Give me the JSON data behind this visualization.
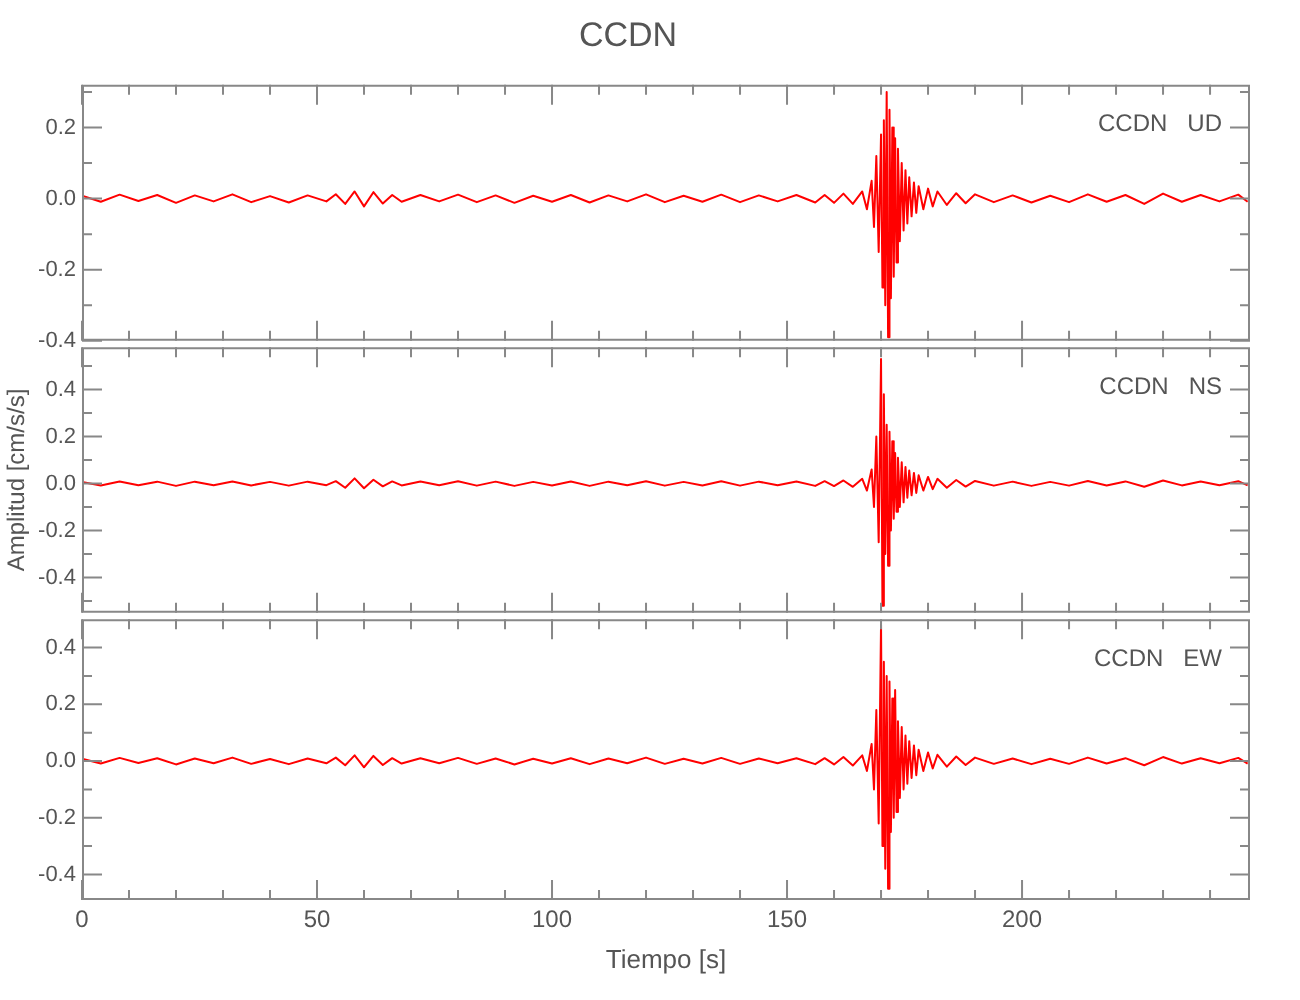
{
  "chart_data": [
    {
      "type": "line",
      "title": "CCDN",
      "annotations": [
        "CCDN   UD"
      ],
      "xlim": [
        0,
        248.5
      ],
      "xticks": [
        0,
        {
          "value": 10,
          "label": null
        },
        {
          "value": 20,
          "label": null
        },
        {
          "value": 30,
          "label": null
        },
        {
          "value": 40,
          "label": null
        },
        50,
        {
          "value": 60,
          "label": null
        },
        {
          "value": 70,
          "label": null
        },
        {
          "value": 80,
          "label": null
        },
        {
          "value": 90,
          "label": null
        },
        100,
        {
          "value": 110,
          "label": null
        },
        {
          "value": 120,
          "label": null
        },
        {
          "value": 130,
          "label": null
        },
        {
          "value": 140,
          "label": null
        },
        150,
        {
          "value": 160,
          "label": null
        },
        {
          "value": 170,
          "label": null
        },
        {
          "value": 180,
          "label": null
        },
        {
          "value": 190,
          "label": null
        },
        200,
        {
          "value": 210,
          "label": null
        },
        {
          "value": 220,
          "label": null
        },
        {
          "value": 230,
          "label": null
        },
        {
          "value": 240,
          "label": null
        }
      ],
      "ylim": [
        -0.4,
        0.32
      ],
      "yticks": [
        {
          "value": -0.4,
          "label": "-0.4"
        },
        {
          "value": -0.3,
          "label": null
        },
        {
          "value": -0.2,
          "label": "-0.2"
        },
        {
          "value": -0.1,
          "label": null
        },
        {
          "value": 0,
          "label": "0.0"
        },
        {
          "value": 0.1,
          "label": null
        },
        {
          "value": 0.2,
          "label": "0.2"
        },
        {
          "value": 0.3,
          "label": null
        }
      ],
      "tick_labels": "y",
      "grid": false,
      "x": [
        0,
        4,
        8,
        12,
        16,
        20,
        24,
        28,
        32,
        36,
        40,
        44,
        48,
        52,
        54,
        56,
        58,
        60,
        62,
        64,
        66,
        68,
        72,
        76,
        80,
        84,
        88,
        92,
        96,
        100,
        104,
        108,
        112,
        116,
        120,
        124,
        128,
        132,
        136,
        140,
        144,
        148,
        152,
        156,
        158,
        160,
        162,
        164,
        166,
        167,
        168,
        168.5,
        169,
        169.5,
        170,
        170.3,
        170.6,
        170.9,
        171.2,
        171.5,
        171.8,
        172.1,
        172.4,
        172.7,
        173,
        173.3,
        173.6,
        174,
        174.4,
        174.8,
        175.2,
        175.6,
        176,
        176.5,
        177,
        177.5,
        178,
        179,
        180,
        181,
        182,
        184,
        186,
        188,
        190,
        194,
        198,
        202,
        206,
        210,
        214,
        218,
        222,
        226,
        230,
        234,
        238,
        242,
        246,
        248
      ],
      "series": [
        {
          "color": "#ff0000",
          "values": [
            0.008,
            -0.009,
            0.011,
            -0.007,
            0.01,
            -0.012,
            0.009,
            -0.008,
            0.012,
            -0.01,
            0.007,
            -0.011,
            0.009,
            -0.008,
            0.012,
            -0.015,
            0.02,
            -0.022,
            0.018,
            -0.014,
            0.01,
            -0.009,
            0.01,
            -0.008,
            0.011,
            -0.01,
            0.009,
            -0.012,
            0.008,
            -0.009,
            0.01,
            -0.011,
            0.009,
            -0.008,
            0.012,
            -0.01,
            0.008,
            -0.009,
            0.011,
            -0.01,
            0.009,
            -0.008,
            0.01,
            -0.011,
            0.01,
            -0.012,
            0.014,
            -0.015,
            0.02,
            -0.03,
            0.05,
            -0.08,
            0.12,
            -0.15,
            0.18,
            -0.25,
            0.22,
            -0.3,
            0.3,
            -0.39,
            0.25,
            -0.28,
            0.2,
            -0.22,
            0.17,
            -0.18,
            0.14,
            -0.12,
            0.1,
            -0.09,
            0.08,
            -0.07,
            0.06,
            -0.05,
            0.045,
            -0.04,
            0.035,
            -0.03,
            0.028,
            -0.022,
            0.02,
            -0.018,
            0.015,
            -0.013,
            0.012,
            -0.01,
            0.009,
            -0.011,
            0.008,
            -0.01,
            0.012,
            -0.009,
            0.01,
            -0.015,
            0.014,
            -0.009,
            0.01,
            -0.008,
            0.011,
            -0.009
          ]
        }
      ]
    },
    {
      "type": "line",
      "ylabel": "Amplitud [cm/s/s]",
      "annotations": [
        "CCDN   NS"
      ],
      "xlim": [
        0,
        248.5
      ],
      "xticks": [
        0,
        {
          "value": 10,
          "label": null
        },
        {
          "value": 20,
          "label": null
        },
        {
          "value": 30,
          "label": null
        },
        {
          "value": 40,
          "label": null
        },
        50,
        {
          "value": 60,
          "label": null
        },
        {
          "value": 70,
          "label": null
        },
        {
          "value": 80,
          "label": null
        },
        {
          "value": 90,
          "label": null
        },
        100,
        {
          "value": 110,
          "label": null
        },
        {
          "value": 120,
          "label": null
        },
        {
          "value": 130,
          "label": null
        },
        {
          "value": 140,
          "label": null
        },
        150,
        {
          "value": 160,
          "label": null
        },
        {
          "value": 170,
          "label": null
        },
        {
          "value": 180,
          "label": null
        },
        {
          "value": 190,
          "label": null
        },
        200,
        {
          "value": 210,
          "label": null
        },
        {
          "value": 220,
          "label": null
        },
        {
          "value": 230,
          "label": null
        },
        {
          "value": 240,
          "label": null
        }
      ],
      "ylim": [
        -0.55,
        0.58
      ],
      "yticks": [
        {
          "value": -0.5,
          "label": null
        },
        {
          "value": -0.4,
          "label": "-0.4"
        },
        {
          "value": -0.3,
          "label": null
        },
        {
          "value": -0.2,
          "label": "-0.2"
        },
        {
          "value": -0.1,
          "label": null
        },
        {
          "value": 0,
          "label": "0.0"
        },
        {
          "value": 0.1,
          "label": null
        },
        {
          "value": 0.2,
          "label": "0.2"
        },
        {
          "value": 0.3,
          "label": null
        },
        {
          "value": 0.4,
          "label": "0.4"
        },
        {
          "value": 0.5,
          "label": null
        }
      ],
      "tick_labels": "y",
      "grid": false,
      "x": [
        0,
        4,
        8,
        12,
        16,
        20,
        24,
        28,
        32,
        36,
        40,
        44,
        48,
        52,
        54,
        56,
        58,
        60,
        62,
        64,
        66,
        68,
        72,
        76,
        80,
        84,
        88,
        92,
        96,
        100,
        104,
        108,
        112,
        116,
        120,
        124,
        128,
        132,
        136,
        140,
        144,
        148,
        152,
        156,
        158,
        160,
        162,
        164,
        166,
        167,
        168,
        168.5,
        169,
        169.5,
        170,
        170.3,
        170.6,
        170.9,
        171.2,
        171.5,
        171.8,
        172.1,
        172.4,
        172.7,
        173,
        173.3,
        173.6,
        174,
        174.4,
        174.8,
        175.2,
        175.6,
        176,
        176.5,
        177,
        177.5,
        178,
        179,
        180,
        181,
        182,
        184,
        186,
        188,
        190,
        194,
        198,
        202,
        206,
        210,
        214,
        218,
        222,
        226,
        230,
        234,
        238,
        242,
        246,
        248
      ],
      "series": [
        {
          "color": "#ff0000",
          "values": [
            0.007,
            -0.008,
            0.009,
            -0.007,
            0.008,
            -0.01,
            0.008,
            -0.007,
            0.009,
            -0.008,
            0.007,
            -0.009,
            0.008,
            -0.007,
            0.01,
            -0.018,
            0.022,
            -0.02,
            0.016,
            -0.012,
            0.009,
            -0.008,
            0.009,
            -0.007,
            0.01,
            -0.009,
            0.008,
            -0.01,
            0.007,
            -0.008,
            0.009,
            -0.01,
            0.008,
            -0.007,
            0.01,
            -0.009,
            0.007,
            -0.008,
            0.01,
            -0.009,
            0.008,
            -0.007,
            0.009,
            -0.01,
            0.01,
            -0.011,
            0.013,
            -0.014,
            0.02,
            -0.03,
            0.06,
            -0.1,
            0.2,
            -0.25,
            0.53,
            -0.52,
            0.38,
            -0.3,
            0.25,
            -0.35,
            0.22,
            -0.2,
            0.18,
            -0.15,
            0.13,
            -0.12,
            0.11,
            -0.1,
            0.09,
            -0.08,
            0.07,
            -0.06,
            0.055,
            -0.05,
            0.045,
            -0.04,
            0.035,
            -0.03,
            0.028,
            -0.024,
            0.02,
            -0.018,
            0.015,
            -0.013,
            0.011,
            -0.009,
            0.008,
            -0.01,
            0.007,
            -0.009,
            0.011,
            -0.008,
            0.009,
            -0.014,
            0.013,
            -0.008,
            0.009,
            -0.007,
            0.01,
            -0.008
          ]
        }
      ]
    },
    {
      "type": "line",
      "xlabel": "Tiempo [s]",
      "annotations": [
        "CCDN   EW"
      ],
      "xlim": [
        0,
        248.5
      ],
      "xticks": [
        0,
        {
          "value": 10,
          "label": null
        },
        {
          "value": 20,
          "label": null
        },
        {
          "value": 30,
          "label": null
        },
        {
          "value": 40,
          "label": null
        },
        50,
        {
          "value": 60,
          "label": null
        },
        {
          "value": 70,
          "label": null
        },
        {
          "value": 80,
          "label": null
        },
        {
          "value": 90,
          "label": null
        },
        100,
        {
          "value": 110,
          "label": null
        },
        {
          "value": 120,
          "label": null
        },
        {
          "value": 130,
          "label": null
        },
        {
          "value": 140,
          "label": null
        },
        150,
        {
          "value": 160,
          "label": null
        },
        {
          "value": 170,
          "label": null
        },
        {
          "value": 180,
          "label": null
        },
        {
          "value": 190,
          "label": null
        },
        200,
        {
          "value": 210,
          "label": null
        },
        {
          "value": 220,
          "label": null
        },
        {
          "value": 230,
          "label": null
        },
        {
          "value": 240,
          "label": null
        }
      ],
      "ylim": [
        -0.49,
        0.5
      ],
      "yticks": [
        {
          "value": -0.4,
          "label": "-0.4"
        },
        {
          "value": -0.3,
          "label": null
        },
        {
          "value": -0.2,
          "label": "-0.2"
        },
        {
          "value": -0.1,
          "label": null
        },
        {
          "value": 0,
          "label": "0.0"
        },
        {
          "value": 0.1,
          "label": null
        },
        {
          "value": 0.2,
          "label": "0.2"
        },
        {
          "value": 0.3,
          "label": null
        },
        {
          "value": 0.4,
          "label": "0.4"
        }
      ],
      "grid": false,
      "x": [
        0,
        4,
        8,
        12,
        16,
        20,
        24,
        28,
        32,
        36,
        40,
        44,
        48,
        52,
        54,
        56,
        58,
        60,
        62,
        64,
        66,
        68,
        72,
        76,
        80,
        84,
        88,
        92,
        96,
        100,
        104,
        108,
        112,
        116,
        120,
        124,
        128,
        132,
        136,
        140,
        144,
        148,
        152,
        156,
        158,
        160,
        162,
        164,
        166,
        167,
        168,
        168.5,
        169,
        169.5,
        170,
        170.3,
        170.6,
        170.9,
        171.2,
        171.5,
        171.8,
        172.1,
        172.4,
        172.7,
        173,
        173.3,
        173.6,
        174,
        174.4,
        174.8,
        175.2,
        175.6,
        176,
        176.5,
        177,
        177.5,
        178,
        179,
        180,
        181,
        182,
        184,
        186,
        188,
        190,
        194,
        198,
        202,
        206,
        210,
        214,
        218,
        222,
        226,
        230,
        234,
        238,
        242,
        246,
        248
      ],
      "series": [
        {
          "color": "#ff0000",
          "values": [
            0.008,
            -0.009,
            0.011,
            -0.007,
            0.01,
            -0.012,
            0.009,
            -0.008,
            0.012,
            -0.01,
            0.007,
            -0.011,
            0.009,
            -0.008,
            0.012,
            -0.015,
            0.02,
            -0.022,
            0.018,
            -0.014,
            0.01,
            -0.009,
            0.01,
            -0.008,
            0.011,
            -0.01,
            0.009,
            -0.012,
            0.008,
            -0.009,
            0.01,
            -0.011,
            0.009,
            -0.008,
            0.012,
            -0.01,
            0.008,
            -0.009,
            0.011,
            -0.01,
            0.009,
            -0.008,
            0.01,
            -0.011,
            0.01,
            -0.012,
            0.014,
            -0.016,
            0.02,
            -0.035,
            0.06,
            -0.1,
            0.18,
            -0.22,
            0.48,
            -0.3,
            0.35,
            -0.38,
            0.3,
            -0.45,
            0.28,
            -0.25,
            0.22,
            -0.2,
            0.25,
            -0.18,
            0.14,
            -0.13,
            0.12,
            -0.1,
            0.09,
            -0.08,
            0.07,
            -0.06,
            0.055,
            -0.05,
            0.04,
            -0.035,
            0.03,
            -0.026,
            0.022,
            -0.02,
            0.016,
            -0.014,
            0.012,
            -0.01,
            0.009,
            -0.011,
            0.008,
            -0.01,
            0.012,
            -0.009,
            0.01,
            -0.015,
            0.014,
            -0.009,
            0.01,
            -0.008,
            0.011,
            -0.009
          ]
        }
      ]
    }
  ]
}
